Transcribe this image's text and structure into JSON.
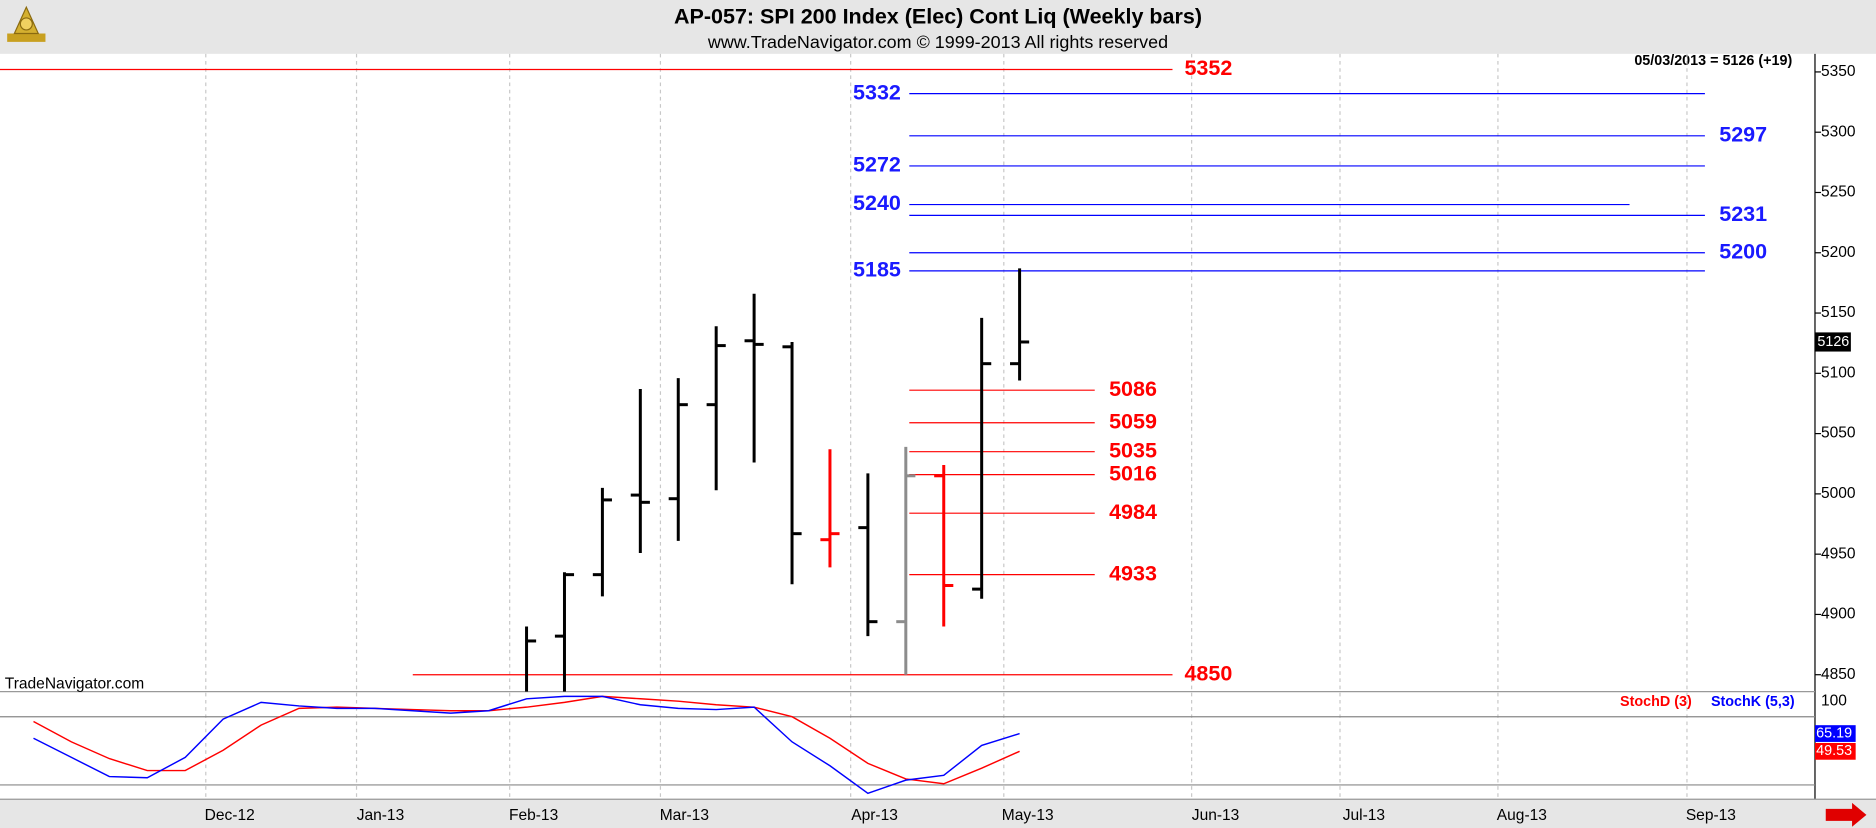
{
  "title": "AP-057:  SPI 200 Index (Elec) Cont Liq  (Weekly bars)",
  "subtitle": "www.TradeNavigator.com © 1999-2013 All rights reserved",
  "watermark": "TradeNavigator.com",
  "chart_data": [
    {
      "type": "ohlc",
      "header": "05/03/2013 = 5126 (+19)",
      "categories": [
        null,
        null,
        null,
        null,
        null,
        null,
        null,
        null,
        null,
        null,
        null,
        null,
        null,
        null
      ],
      "open": [
        null,
        4882,
        4933,
        4999,
        4996,
        5074,
        5127,
        5122,
        4962,
        4972,
        4894,
        5015,
        4921,
        5108
      ],
      "high": [
        4890,
        4935,
        5005,
        5087,
        5096,
        5139,
        5166,
        5126,
        5037,
        5017,
        5039,
        5024,
        5146,
        5187
      ],
      "low": [
        4836,
        4836,
        4915,
        4951,
        4961,
        5003,
        5026,
        4925,
        4939,
        4882,
        4850,
        4890,
        4913,
        5094
      ],
      "close": [
        4878,
        4933,
        4995,
        4993,
        5074,
        5123,
        5124,
        4967,
        4967,
        4894,
        5015,
        4924,
        5108,
        5126
      ],
      "colors": [
        "#000000",
        "#000000",
        "#000000",
        "#000000",
        "#000000",
        "#000000",
        "#000000",
        "#000000",
        "#ff0000",
        "#000000",
        "#8c8c8c",
        "#ff0000",
        "#000000",
        "#000000"
      ],
      "ylim": [
        4836,
        5365
      ],
      "yticks": [
        4850,
        4900,
        4950,
        5000,
        5050,
        5100,
        5150,
        5200,
        5250,
        5300,
        5350
      ],
      "months": [
        "Dec-12",
        "Jan-13",
        "Feb-13",
        "Mar-13",
        "Apr-13",
        "May-13",
        "Jun-13",
        "Jul-13",
        "Aug-13",
        "Sep-13"
      ],
      "levels": [
        {
          "value": 5352,
          "color": "#ff0000"
        },
        {
          "value": 5332,
          "color": "#0000ff"
        },
        {
          "value": 5297,
          "color": "#0000ff"
        },
        {
          "value": 5272,
          "color": "#0000ff"
        },
        {
          "value": 5240,
          "color": "#0000ff"
        },
        {
          "value": 5231,
          "color": "#0000ff"
        },
        {
          "value": 5200,
          "color": "#0000ff"
        },
        {
          "value": 5185,
          "color": "#0000ff"
        },
        {
          "value": 5086,
          "color": "#ff0000"
        },
        {
          "value": 5059,
          "color": "#ff0000"
        },
        {
          "value": 5035,
          "color": "#ff0000"
        },
        {
          "value": 5016,
          "color": "#ff0000"
        },
        {
          "value": 4984,
          "color": "#ff0000"
        },
        {
          "value": 4933,
          "color": "#ff0000"
        },
        {
          "value": 4850,
          "color": "#ff0000"
        }
      ]
    },
    {
      "type": "line",
      "series": [
        {
          "name": "StochD (3)",
          "color": "#ff0000",
          "values": [
            75.8,
            57.9,
            43.2,
            32.6,
            32.6,
            50.5,
            72.6,
            87.4,
            88.4,
            87.4,
            86.3,
            85.3,
            85.3,
            88.4,
            92.6,
            97.9,
            95.8,
            93.7,
            90.5,
            88.4,
            80,
            61.1,
            38.9,
            25.3,
            21.1,
            34.7,
            49.53
          ]
        },
        {
          "name": "StochK (5,3)",
          "color": "#0000ff",
          "values": [
            61.1,
            44.2,
            27.4,
            26.3,
            44.2,
            77.9,
            92.6,
            89.5,
            87.4,
            87.4,
            85.3,
            83.2,
            85.3,
            95.8,
            97.9,
            97.9,
            90.5,
            87.4,
            86.3,
            88.4,
            57.9,
            36.8,
            12.6,
            24.2,
            28.4,
            54.7,
            65.19
          ]
        }
      ],
      "ylim": [
        0,
        100
      ],
      "yticks": [
        100
      ],
      "levels": [
        80,
        20
      ]
    }
  ]
}
